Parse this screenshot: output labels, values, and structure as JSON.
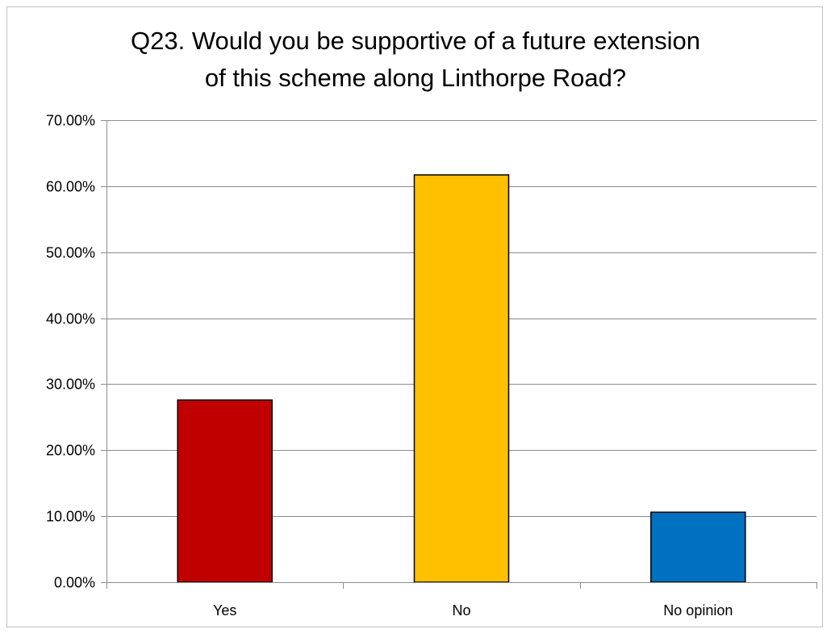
{
  "chart_data": {
    "type": "bar",
    "title_lines": [
      "Q23. Would you be supportive of a future extension",
      "of this scheme along Linthorpe Road?"
    ],
    "categories": [
      "Yes",
      "No",
      "No opinion"
    ],
    "values": [
      27.6,
      61.7,
      10.6
    ],
    "colors": [
      "#c00000",
      "#ffc000",
      "#0070c0"
    ],
    "ylim": [
      0,
      70
    ],
    "yticks": [
      0,
      10,
      20,
      30,
      40,
      50,
      60,
      70
    ],
    "ytick_labels": [
      "0.00%",
      "10.00%",
      "20.00%",
      "30.00%",
      "40.00%",
      "50.00%",
      "60.00%",
      "70.00%"
    ],
    "grid": true,
    "legend": "none"
  }
}
